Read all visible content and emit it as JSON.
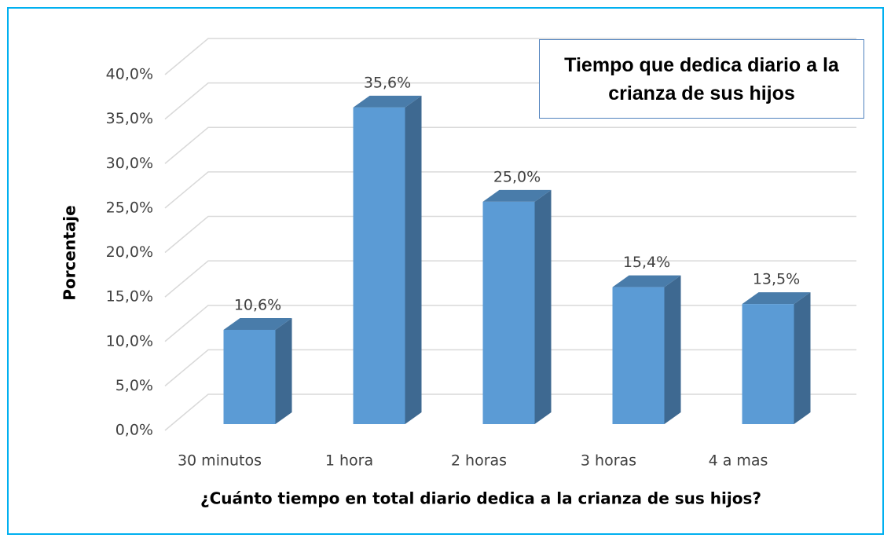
{
  "chart_data": {
    "type": "bar3d",
    "title": "Tiempo que dedica diario a la crianza de sus hijos",
    "xlabel": "¿Cuánto tiempo en total diario dedica a la crianza de sus hijos?",
    "ylabel": "Porcentaje",
    "categories": [
      "30 minutos",
      "1 hora",
      "2 horas",
      "3 horas",
      "4 a mas"
    ],
    "values": [
      10.6,
      35.6,
      25.0,
      15.4,
      13.5
    ],
    "value_labels": [
      "10,6%",
      "35,6%",
      "25,0%",
      "15,4%",
      "13,5%"
    ],
    "color": "#5b9bd5",
    "ylim": [
      0,
      40
    ],
    "yticks": [
      {
        "value": 0,
        "label": "0,0%"
      },
      {
        "value": 5,
        "label": "5,0%"
      },
      {
        "value": 10,
        "label": "10,0%"
      },
      {
        "value": 15,
        "label": "15,0%"
      },
      {
        "value": 20,
        "label": "20,0%"
      },
      {
        "value": 25,
        "label": "25,0%"
      },
      {
        "value": 30,
        "label": "30,0%"
      },
      {
        "value": 35,
        "label": "35,0%"
      },
      {
        "value": 40,
        "label": "40,0%"
      }
    ],
    "grid": true
  }
}
